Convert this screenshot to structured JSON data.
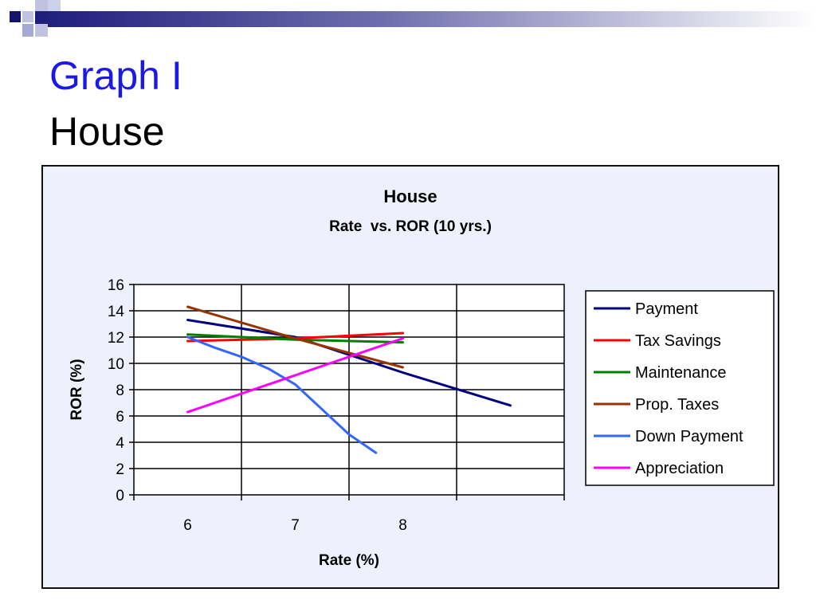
{
  "slide": {
    "title": "Graph I",
    "subtitle": "House",
    "title_color": "#1a1ae6"
  },
  "chart_data": {
    "type": "line",
    "title": "House",
    "subtitle": "Rate  vs. ROR (10 yrs.)",
    "xlabel": "Rate (%)",
    "ylabel": "ROR (%)",
    "x": [
      6,
      7,
      8
    ],
    "x_ticks": [
      "6",
      "7",
      "8"
    ],
    "y_ticks": [
      "0",
      "2",
      "4",
      "6",
      "8",
      "10",
      "12",
      "14",
      "16"
    ],
    "ylim": [
      0,
      16
    ],
    "grid": true,
    "legend_position": "right",
    "series": [
      {
        "name": "Payment",
        "color": "#000080",
        "points": [
          [
            6,
            13.3
          ],
          [
            7,
            12.0
          ],
          [
            8,
            9.3
          ],
          [
            9,
            6.8
          ]
        ]
      },
      {
        "name": "Tax Savings",
        "color": "#ff0000",
        "points": [
          [
            6,
            11.7
          ],
          [
            7,
            11.9
          ],
          [
            8,
            12.3
          ]
        ]
      },
      {
        "name": "Maintenance",
        "color": "#008000",
        "points": [
          [
            6,
            12.2
          ],
          [
            7,
            11.8
          ],
          [
            8,
            11.6
          ]
        ]
      },
      {
        "name": "Prop. Taxes",
        "color": "#993300",
        "points": [
          [
            6,
            14.3
          ],
          [
            7,
            11.9
          ],
          [
            8,
            9.7
          ]
        ]
      },
      {
        "name": "Down Payment",
        "color": "#3366ff",
        "points": [
          [
            6,
            12.0
          ],
          [
            6.25,
            11.2
          ],
          [
            6.5,
            10.5
          ],
          [
            6.75,
            9.6
          ],
          [
            7,
            8.4
          ],
          [
            7.25,
            6.5
          ],
          [
            7.5,
            4.6
          ],
          [
            7.75,
            3.2
          ]
        ]
      },
      {
        "name": "Appreciation",
        "color": "#ff00ff",
        "points": [
          [
            6,
            6.3
          ],
          [
            7,
            9.1
          ],
          [
            8,
            11.9
          ]
        ]
      }
    ]
  }
}
